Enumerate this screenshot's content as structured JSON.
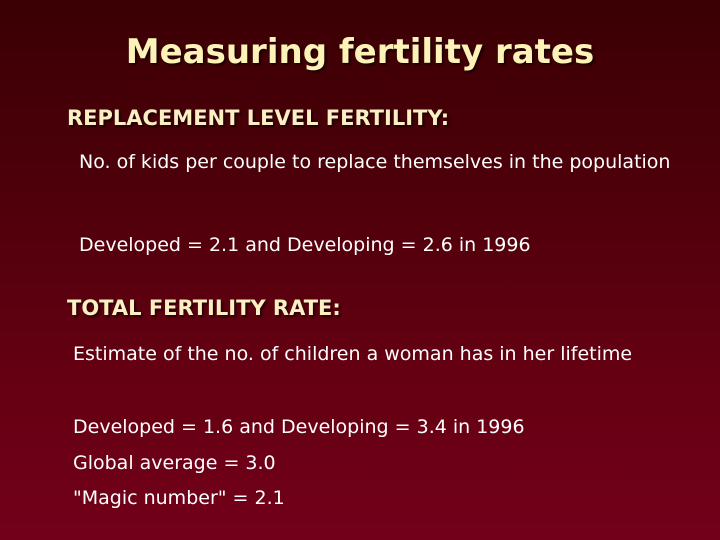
{
  "slide": {
    "title": "Measuring fertility rates",
    "sections": [
      {
        "heading": "REPLACEMENT LEVEL FERTILITY:",
        "definition": "No. of kids per couple to replace themselves in the population",
        "stat": "Developed = 2.1 and Developing = 2.6 in 1996"
      },
      {
        "heading": "TOTAL FERTILITY RATE:",
        "definition": "Estimate of the no. of children a woman has in her lifetime",
        "stat": "Developed = 1.6 and Developing = 3.4 in 1996",
        "global_average": "Global average = 3.0",
        "magic_number": "\"Magic number\" = 2.1"
      }
    ]
  },
  "colors": {
    "background_top": "#3a0003",
    "background_bottom": "#72001a",
    "title": "#fdf3b8",
    "heading": "#fbf0c4",
    "body": "#ffffff"
  }
}
